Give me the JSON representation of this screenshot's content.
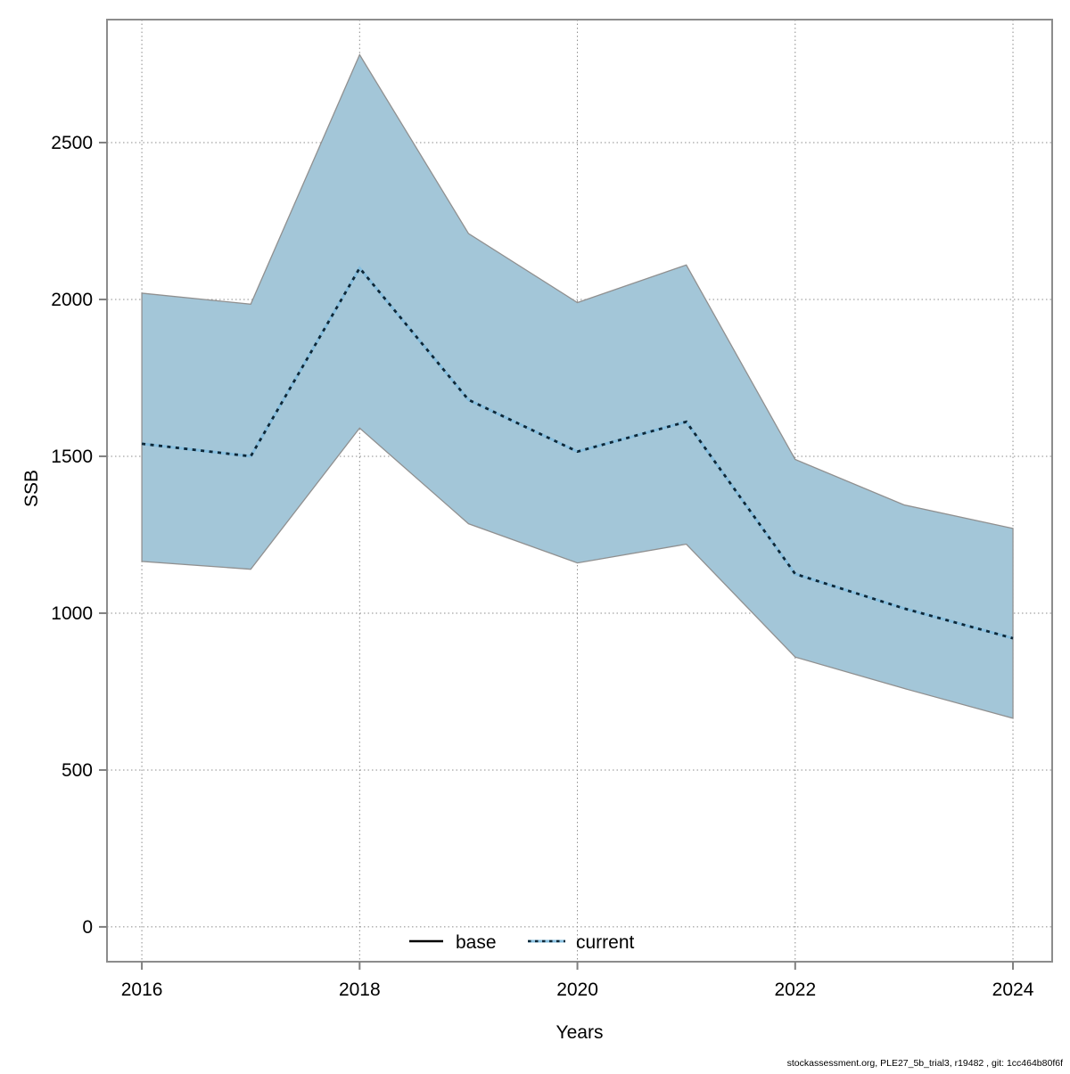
{
  "figure": {
    "footer": "stockassessment.org, PLE27_5b_trial3, r19482 , git: 1cc464b80f6f",
    "background": "#ffffff"
  },
  "chart_data": {
    "type": "line",
    "title": "",
    "xlabel": "Years",
    "ylabel": "SSB",
    "x": [
      2016,
      2017,
      2018,
      2019,
      2020,
      2021,
      2022,
      2023,
      2024
    ],
    "series": [
      {
        "name": "current",
        "style": "dotted",
        "color": "#0d2737",
        "underlay_color": "#87bfdf",
        "values": [
          1540,
          1500,
          2100,
          1680,
          1515,
          1610,
          1125,
          1015,
          920
        ]
      }
    ],
    "band": {
      "name": "confidence-interval",
      "upper": [
        2020,
        1985,
        2780,
        2210,
        1990,
        2110,
        1490,
        1345,
        1270
      ],
      "lower": [
        1165,
        1140,
        1590,
        1285,
        1160,
        1220,
        860,
        760,
        665
      ],
      "fill": "#a3c6d8",
      "edge": "#909090"
    },
    "legend": [
      {
        "label": "base",
        "style": "solid",
        "color": "#000000"
      },
      {
        "label": "current",
        "style": "dotted",
        "color": "#0d2737"
      }
    ],
    "legend_position": "bottom-center-inside",
    "xticks": [
      2016,
      2018,
      2020,
      2022,
      2024
    ],
    "yticks": [
      0,
      500,
      1000,
      1500,
      2000,
      2500
    ],
    "x_range": [
      2015.68,
      2024.36
    ],
    "y_range": [
      -111,
      2892
    ],
    "grid": "dotted",
    "axis_color": "#8c8c8c"
  }
}
